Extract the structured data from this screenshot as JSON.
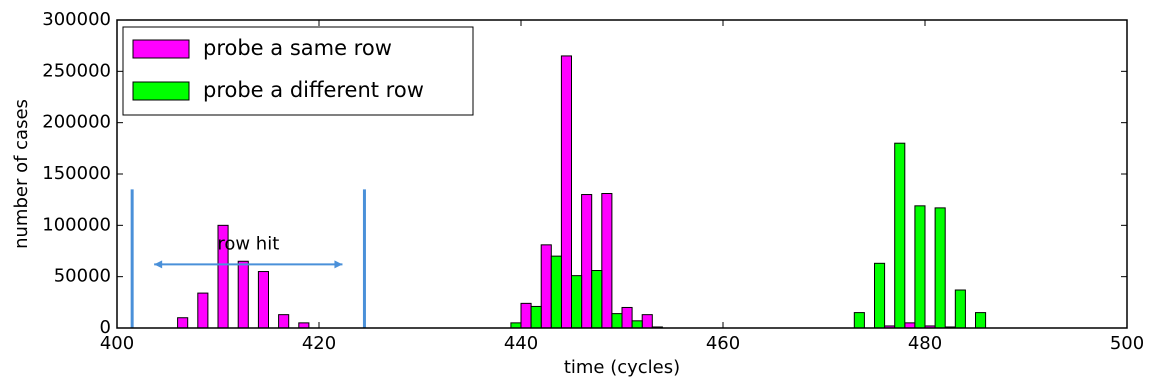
{
  "chart_data": {
    "type": "bar",
    "xlabel": "time (cycles)",
    "ylabel": "number of cases",
    "x": [
      406,
      408,
      410,
      412,
      414,
      416,
      418,
      420,
      422,
      424,
      426,
      428,
      430,
      432,
      434,
      436,
      438,
      440,
      442,
      444,
      446,
      448,
      450,
      452,
      454,
      456,
      458,
      460,
      462,
      464,
      466,
      468,
      470,
      472,
      474,
      476,
      478,
      480,
      482,
      484
    ],
    "series": [
      {
        "name": "probe a same row",
        "color": "#ff00ff",
        "values": [
          10000,
          34000,
          100000,
          65000,
          55000,
          13000,
          5000,
          0,
          0,
          0,
          0,
          0,
          0,
          0,
          0,
          0,
          0,
          24000,
          81000,
          265000,
          130000,
          131000,
          20000,
          13000,
          0,
          0,
          0,
          0,
          0,
          0,
          0,
          0,
          0,
          0,
          0,
          2000,
          5000,
          2000,
          1000,
          0
        ]
      },
      {
        "name": "probe a different row",
        "color": "#00ff00",
        "values": [
          0,
          0,
          0,
          0,
          0,
          0,
          0,
          0,
          0,
          0,
          0,
          0,
          0,
          0,
          0,
          0,
          5000,
          21000,
          70000,
          51000,
          56000,
          14000,
          7000,
          1000,
          0,
          0,
          0,
          0,
          0,
          0,
          0,
          0,
          0,
          15000,
          63000,
          180000,
          119000,
          117000,
          37000,
          15000
        ]
      }
    ],
    "xlim": [
      400,
      500
    ],
    "ylim": [
      0,
      300000
    ],
    "xticks": [
      400,
      420,
      440,
      460,
      480,
      500
    ],
    "yticks": [
      0,
      50000,
      100000,
      150000,
      200000,
      250000,
      300000
    ],
    "legend": "upper left",
    "annotations": [
      {
        "text": "row hit",
        "x": [
          401.5,
          424.5
        ],
        "y": 135000,
        "color": "#4a90d9"
      }
    ]
  }
}
